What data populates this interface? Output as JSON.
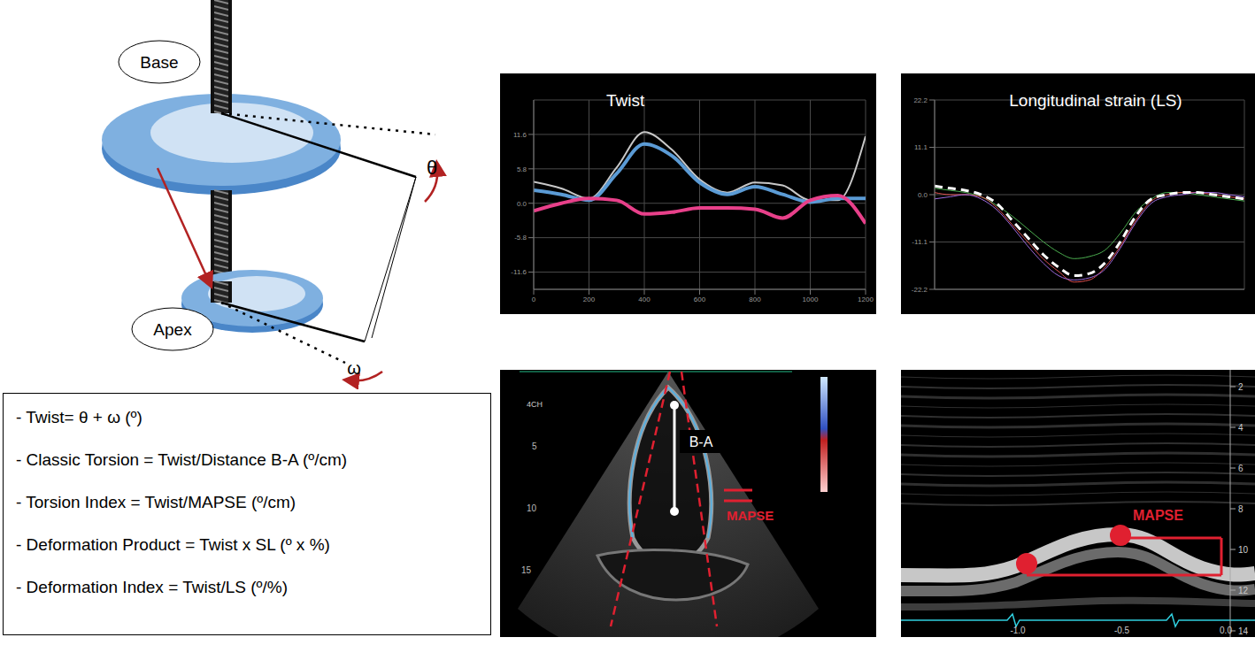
{
  "diagram": {
    "base": "Base",
    "apex": "Apex",
    "base_angle": "θ",
    "apex_angle": "ω"
  },
  "formulas": [
    "- Twist= θ + ω (º)",
    "- Classic Torsion = Twist/Distance B-A (º/cm)",
    "- Torsion Index = Twist/MAPSE (º/cm)",
    "- Deformation Product = Twist x SL (º x %)",
    "- Deformation Index = Twist/LS (º/%)"
  ],
  "chart_data": [
    {
      "type": "line",
      "title": "Twist",
      "x": [
        0,
        100,
        200,
        300,
        400,
        500,
        600,
        700,
        800,
        900,
        1000,
        1100,
        1200
      ],
      "xlim": [
        0,
        1200
      ],
      "xticks": [
        0,
        200,
        400,
        600,
        800,
        1000,
        1200
      ],
      "ylim": [
        -14.5,
        17.4
      ],
      "yticks": [
        -11.6,
        -5.8,
        {
          "value": 0,
          "label": "0.0"
        },
        5.8,
        11.6
      ],
      "grid": true,
      "series": [
        {
          "color": "#c8c8c8",
          "values": [
            3.6,
            2.5,
            0.8,
            6,
            12,
            9,
            4,
            1.8,
            3.5,
            3,
            0.5,
            0.5,
            11.3
          ]
        },
        {
          "color": "#5b9bd5",
          "values": [
            2.2,
            1.5,
            0.5,
            5,
            10,
            8,
            3.5,
            1.5,
            2.8,
            1.5,
            0.2,
            0.8,
            0.8
          ]
        },
        {
          "color": "#e8408a",
          "values": [
            -1.3,
            0,
            0.8,
            0.5,
            -1.8,
            -1.5,
            -0.8,
            -0.8,
            -1,
            -2.5,
            0.5,
            1.3,
            -3.4
          ]
        }
      ]
    },
    {
      "type": "line",
      "title": "Longitudinal strain (LS)",
      "x": [
        0,
        50,
        100,
        150,
        200,
        250,
        300,
        350,
        400,
        450,
        500,
        550,
        600,
        650,
        700,
        750,
        800,
        850,
        900,
        950,
        1000
      ],
      "xlim": [
        0,
        1000
      ],
      "ylim": [
        -22.2,
        22.2
      ],
      "yticks": [
        -22.2,
        -11.1,
        {
          "value": 0,
          "label": "0.0"
        },
        11.1,
        22.2
      ],
      "grid": true,
      "tick_labels": "y",
      "series": [
        {
          "color": "#4caf50",
          "values": [
            1.5,
            1,
            0.5,
            -0.5,
            -2.5,
            -5,
            -8,
            -11,
            -13.5,
            -15,
            -14.5,
            -13,
            -9,
            -4,
            -1,
            0.5,
            0.5,
            0,
            -0.5,
            -1,
            -1.5
          ]
        },
        {
          "color": "#e05050",
          "values": [
            0.5,
            0,
            0,
            -0.5,
            -3,
            -7,
            -11,
            -15,
            -18,
            -20.5,
            -20,
            -17,
            -12,
            -6,
            -1.5,
            0,
            0.5,
            0.5,
            0,
            -0.5,
            -1
          ]
        },
        {
          "color": "#9c6ade",
          "values": [
            -1,
            -0.5,
            0,
            -1,
            -3.5,
            -7.5,
            -12,
            -16,
            -19,
            -20,
            -19.5,
            -17.5,
            -12.5,
            -6.5,
            -2,
            -0.5,
            0,
            0.5,
            0.5,
            0,
            -0.5
          ]
        },
        {
          "color": "#ffffff",
          "line_style": "dashed",
          "values": [
            2,
            1.5,
            1,
            0,
            -2,
            -6,
            -10,
            -14,
            -17,
            -19,
            -18.5,
            -16,
            -11,
            -5,
            -1,
            0,
            0.5,
            0.5,
            0,
            -0.5,
            -1
          ]
        }
      ]
    }
  ],
  "echo_4ch": {
    "view": "4CH",
    "distance_label": "B-A",
    "mapse_label": "MAPSE",
    "depth_ticks": [
      5,
      10,
      15
    ]
  },
  "m_mode": {
    "mapse_label": "MAPSE",
    "depth_ticks": [
      2,
      4,
      6,
      8,
      10,
      12,
      14
    ],
    "time_ticks": [
      {
        "value": -1,
        "label": "-1.0"
      },
      {
        "value": -0.5,
        "label": "-0.5"
      },
      {
        "value": 0,
        "label": "0.0"
      }
    ]
  }
}
